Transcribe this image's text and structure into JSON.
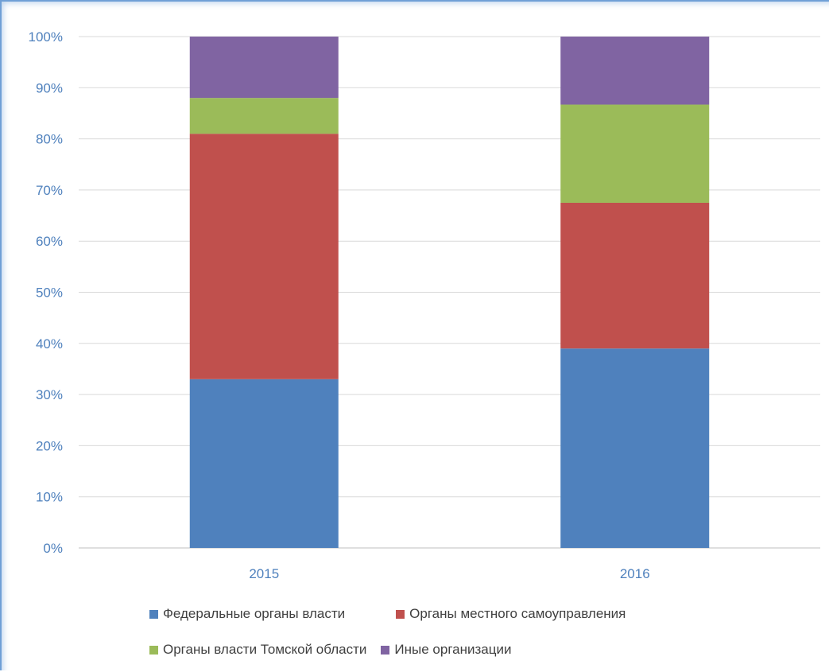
{
  "chart_data": {
    "type": "bar",
    "stacked": true,
    "normalized_percent": true,
    "categories": [
      "2015",
      "2016"
    ],
    "series": [
      {
        "name": "Федеральные органы власти",
        "color": "#4f81bd",
        "values": [
          33,
          39
        ]
      },
      {
        "name": "Органы местного самоуправления",
        "color": "#c0504d",
        "values": [
          48,
          28.5
        ]
      },
      {
        "name": "Органы власти Томской области",
        "color": "#9bbb59",
        "values": [
          7,
          19.2
        ]
      },
      {
        "name": "Иные организации",
        "color": "#8064a2",
        "values": [
          12,
          13.3
        ]
      }
    ],
    "ylim": [
      0,
      100
    ],
    "y_ticks": [
      "0%",
      "10%",
      "20%",
      "30%",
      "40%",
      "50%",
      "60%",
      "70%",
      "80%",
      "90%",
      "100%"
    ],
    "grid": true,
    "legend_position": "bottom",
    "title": "",
    "xlabel": "",
    "ylabel": ""
  },
  "legend": {
    "row1": [
      {
        "label": "Федеральные органы власти",
        "color": "#4f81bd"
      },
      {
        "label": "Органы местного самоуправления",
        "color": "#c0504d"
      }
    ],
    "row2": [
      {
        "label": "Органы власти Томской области",
        "color": "#9bbb59"
      },
      {
        "label": "Иные организации",
        "color": "#8064a2"
      }
    ]
  }
}
